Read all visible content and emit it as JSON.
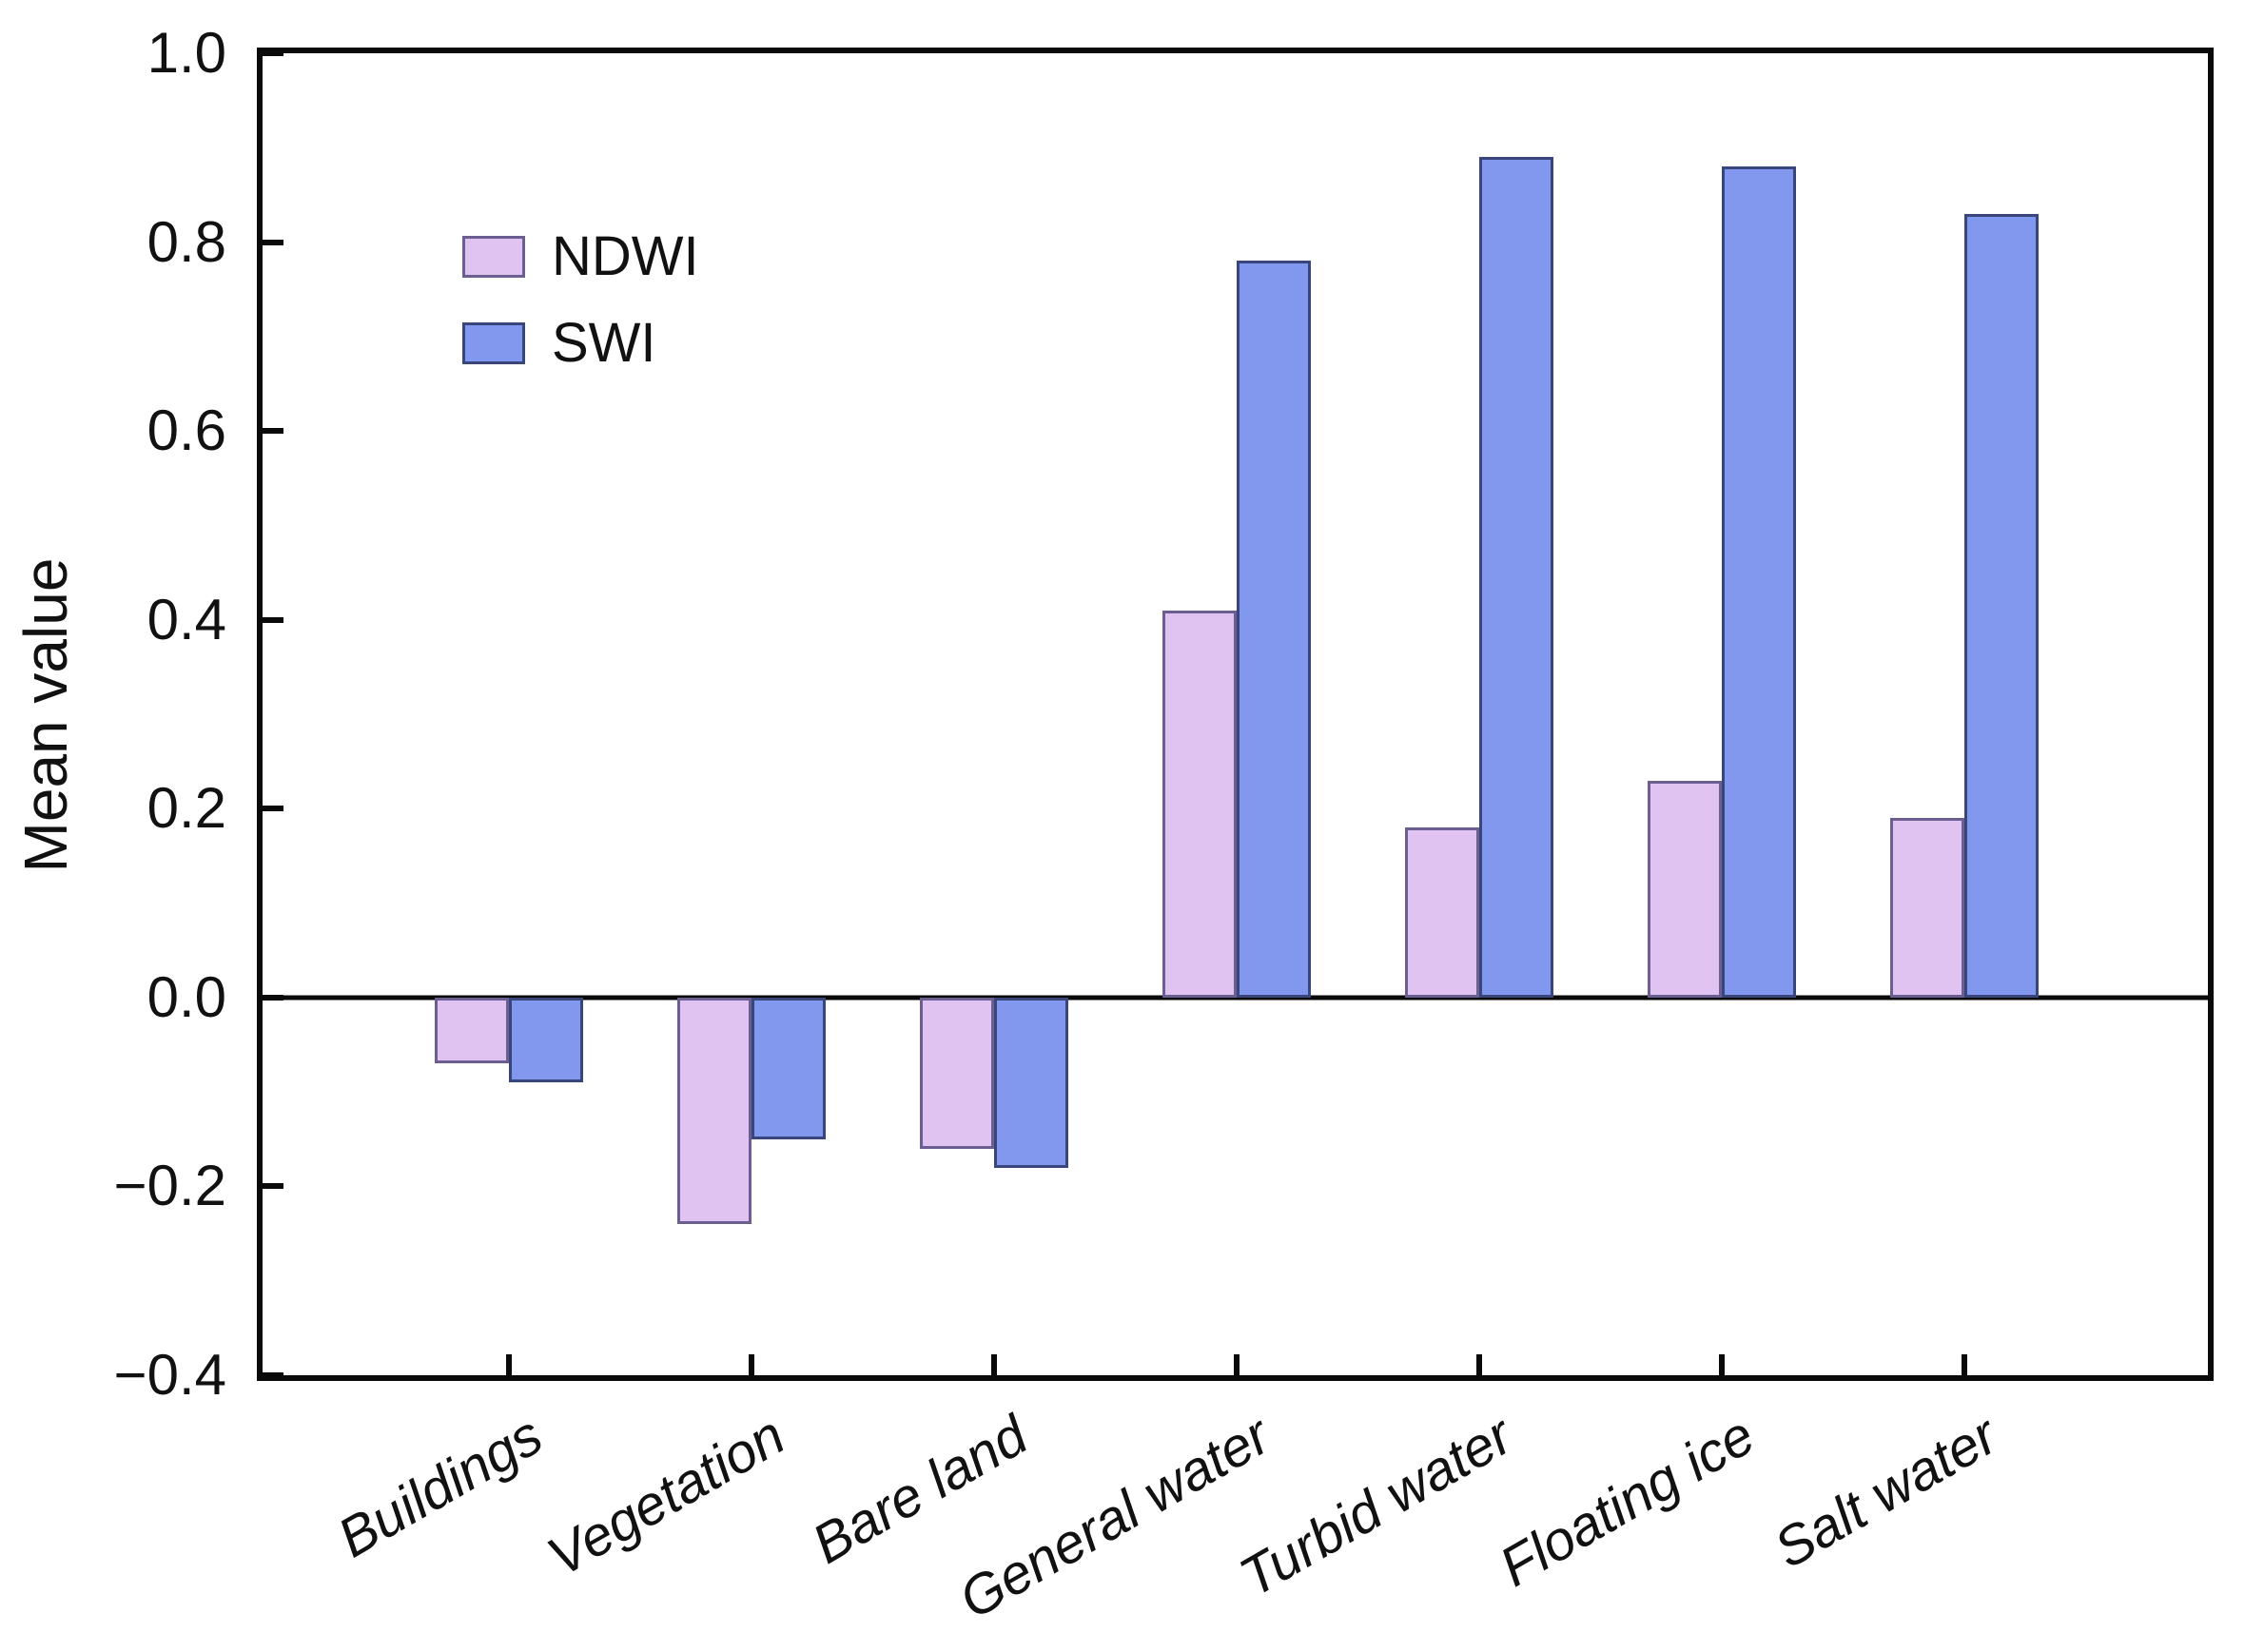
{
  "chart_data": {
    "type": "bar",
    "title": "",
    "ylabel": "Mean value",
    "xlabel": "",
    "grid": false,
    "zero_line": true,
    "legend_position": "upper-left",
    "ylim": [
      -0.4,
      1.0
    ],
    "categories": [
      "Buildings",
      "Vegetation",
      "Bare land",
      "General water",
      "Turbid water",
      "Floating ice",
      "Salt water"
    ],
    "series": [
      {
        "name": "NDWI",
        "fill_color": "#e0c3f1",
        "edge_color": "#6b5f92",
        "values": [
          -0.07,
          -0.24,
          -0.16,
          0.41,
          0.18,
          0.23,
          0.19
        ]
      },
      {
        "name": "SWI",
        "fill_color": "#8298ee",
        "edge_color": "#39467c",
        "values": [
          -0.09,
          -0.15,
          -0.18,
          0.78,
          0.89,
          0.88,
          0.83
        ]
      }
    ],
    "yticks": [
      {
        "label": "1.0",
        "value": 1.0
      },
      {
        "label": "0.8",
        "value": 0.8
      },
      {
        "label": "0.6",
        "value": 0.6
      },
      {
        "label": "0.4",
        "value": 0.4
      },
      {
        "label": "0.2",
        "value": 0.2
      },
      {
        "label": "0.0",
        "value": 0.0
      },
      {
        "label": "−0.2",
        "value": -0.2
      },
      {
        "label": "−0.4",
        "value": -0.4
      }
    ],
    "axis_color": "#0a0a0a",
    "background_color": "#ffffff"
  }
}
